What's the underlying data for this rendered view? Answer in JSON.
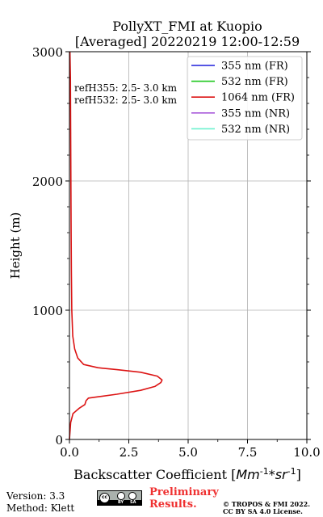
{
  "chart_data": {
    "type": "line",
    "title": [
      "PollyXT_FMI at Kuopio",
      "[Averaged] 20220219 12:00-12:59"
    ],
    "xlabel": "Backscatter Coefficient [$Mm^{-1}*sr^{-1}$]",
    "ylabel": "Height (m)",
    "xlim": [
      0,
      10
    ],
    "ylim": [
      0,
      3000
    ],
    "xticks": [
      0,
      2.5,
      5,
      7.5,
      10
    ],
    "xtick_labels": [
      "0.0",
      "2.5",
      "5.0",
      "7.5",
      "10.0"
    ],
    "yticks": [
      0,
      1000,
      2000,
      3000
    ],
    "ytick_labels": [
      "0",
      "1000",
      "2000",
      "3000"
    ],
    "grid": true,
    "legend_position": "top-right",
    "annotations": [
      "refH355:  2.5- 3.0 km",
      "refH532:  2.5- 3.0 km"
    ],
    "series": [
      {
        "name": "355 nm (FR)",
        "color": "#1f1fdc",
        "x": [],
        "y": []
      },
      {
        "name": "532 nm (FR)",
        "color": "#1fc81f",
        "x": [],
        "y": []
      },
      {
        "name": "1064 nm (FR)",
        "color": "#dc1414",
        "x": [
          0.0,
          0.05,
          0.15,
          0.4,
          0.65,
          0.7,
          0.8,
          1.2,
          2.0,
          3.0,
          3.6,
          3.85,
          3.9,
          3.7,
          3.0,
          2.0,
          1.2,
          0.6,
          0.35,
          0.22,
          0.14,
          0.1,
          0.08,
          0.07,
          0.06,
          0.05,
          0.04,
          0.02
        ],
        "y": [
          0,
          130,
          200,
          240,
          270,
          300,
          320,
          330,
          350,
          380,
          410,
          440,
          460,
          490,
          520,
          540,
          555,
          580,
          630,
          700,
          800,
          1000,
          1300,
          1600,
          2000,
          2400,
          2800,
          3000
        ]
      },
      {
        "name": "355 nm (NR)",
        "color": "#a95adb",
        "x": [],
        "y": []
      },
      {
        "name": "532 nm (NR)",
        "color": "#6ef2cf",
        "x": [],
        "y": []
      }
    ]
  },
  "footer": {
    "version": "Version: 3.3",
    "method": "Method: Klett",
    "license_badge_text": "cc BY SA",
    "preliminary_line1": "Preliminary",
    "preliminary_line2": "Results.",
    "copyright_line1": "© TROPOS & FMI 2022.",
    "copyright_line2": "CC BY SA 4.0 License."
  }
}
